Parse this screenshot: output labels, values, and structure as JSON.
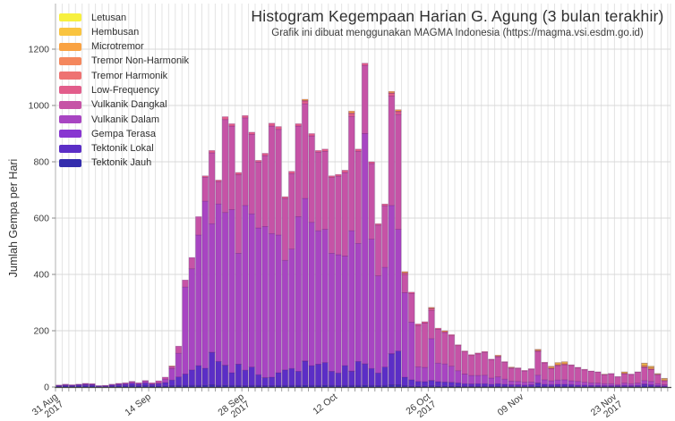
{
  "header": {
    "title": "Histogram Kegempaan Harian G. Agung (3 bulan terakhir)",
    "subtitle": "Grafik ini dibuat menggunakan MAGMA Indonesia (https://magma.vsi.esdm.go.id)"
  },
  "chart_data": {
    "type": "bar",
    "stacked": true,
    "title": "Histogram Kegempaan Harian G. Agung (3 bulan terakhir)",
    "subtitle": "Grafik ini dibuat menggunakan MAGMA Indonesia (https://magma.vsi.esdm.go.id)",
    "ylabel": "Jumlah Gempa per Hari",
    "xlabel": "",
    "x_start": "31 Aug 2017",
    "x_end": "30 Nov 2017",
    "days": 92,
    "ylim": [
      0,
      1200
    ],
    "grid": true,
    "legend_position": "upper-left",
    "yticks": [
      0,
      200,
      400,
      600,
      800,
      1000,
      1200
    ],
    "xticks": [
      {
        "day": 0,
        "lines": [
          "31 Aug",
          "2017"
        ]
      },
      {
        "day": 14,
        "lines": [
          "14 Sep"
        ]
      },
      {
        "day": 28,
        "lines": [
          "28 Sep",
          "2017"
        ]
      },
      {
        "day": 42,
        "lines": [
          "12 Oct"
        ]
      },
      {
        "day": 56,
        "lines": [
          "26 Oct",
          "2017"
        ]
      },
      {
        "day": 70,
        "lines": [
          "09 Nov"
        ]
      },
      {
        "day": 84,
        "lines": [
          "23 Nov",
          "2017"
        ]
      }
    ],
    "series": [
      {
        "key": "tektonik-jauh",
        "label": "Tektonik Jauh",
        "color": "#342DAD",
        "values": [
          3,
          4,
          3,
          4,
          4,
          4,
          2,
          2,
          3,
          4,
          4,
          5,
          4,
          5,
          4,
          4,
          4,
          5,
          6,
          6,
          6,
          6,
          7,
          8,
          6,
          7,
          6,
          6,
          5,
          6,
          6,
          5,
          5,
          6,
          6,
          6,
          6,
          7,
          6,
          6,
          7,
          6,
          5,
          6,
          6,
          6,
          7,
          6,
          5,
          6,
          8,
          8,
          5,
          4,
          4,
          4,
          5,
          4,
          4,
          4,
          4,
          3,
          3,
          3,
          3,
          3,
          3,
          3,
          2,
          2,
          2,
          2,
          4,
          3,
          3,
          3,
          3,
          3,
          2,
          2,
          2,
          2,
          2,
          2,
          2,
          2,
          2,
          2,
          4,
          3,
          2,
          2
        ]
      },
      {
        "key": "tektonik-lokal",
        "label": "Tektonik Lokal",
        "color": "#5B2EC6",
        "values": [
          2,
          3,
          3,
          4,
          5,
          4,
          2,
          2,
          4,
          5,
          6,
          8,
          6,
          9,
          6,
          8,
          12,
          20,
          30,
          40,
          55,
          70,
          60,
          115,
          85,
          70,
          45,
          75,
          55,
          65,
          38,
          28,
          30,
          45,
          55,
          60,
          50,
          85,
          70,
          75,
          80,
          50,
          45,
          70,
          50,
          85,
          75,
          60,
          45,
          65,
          110,
          120,
          30,
          22,
          16,
          15,
          18,
          15,
          14,
          13,
          11,
          9,
          8,
          9,
          9,
          7,
          9,
          7,
          6,
          6,
          5,
          6,
          10,
          7,
          6,
          7,
          7,
          6,
          5,
          5,
          4,
          4,
          3,
          3,
          3,
          4,
          3,
          4,
          6,
          5,
          3,
          2
        ]
      },
      {
        "key": "gempa-terasa",
        "label": "Gempa Terasa",
        "color": "#8836D1",
        "values": [
          0,
          0,
          0,
          0,
          0,
          0,
          0,
          0,
          0,
          0,
          0,
          0,
          0,
          0,
          0,
          0,
          0,
          0,
          0,
          0,
          0,
          0,
          0,
          1,
          0,
          1,
          0,
          0,
          0,
          0,
          0,
          1,
          0,
          0,
          0,
          0,
          0,
          1,
          0,
          0,
          0,
          0,
          0,
          0,
          1,
          0,
          1,
          0,
          0,
          0,
          1,
          0,
          0,
          0,
          0,
          0,
          1,
          0,
          0,
          0,
          0,
          0,
          0,
          0,
          0,
          0,
          0,
          0,
          0,
          0,
          0,
          0,
          1,
          0,
          0,
          0,
          0,
          0,
          0,
          0,
          0,
          0,
          0,
          0,
          0,
          0,
          0,
          0,
          1,
          0,
          0,
          0
        ]
      },
      {
        "key": "vulkanik-dalam",
        "label": "Vulkanik Dalam",
        "color": "#A845C2",
        "values": [
          1,
          2,
          1,
          1,
          2,
          2,
          1,
          1,
          2,
          2,
          3,
          4,
          3,
          6,
          1,
          3,
          12,
          40,
          84,
          309,
          359,
          464,
          593,
          456,
          559,
          542,
          579,
          394,
          585,
          544,
          521,
          536,
          510,
          489,
          389,
          424,
          549,
          577,
          509,
          474,
          473,
          419,
          420,
          389,
          498,
          419,
          817,
          459,
          345,
          354,
          526,
          432,
          300,
          204,
          52,
          51,
          148,
          66,
          64,
          57,
          43,
          34,
          30,
          29,
          30,
          22,
          24,
          18,
          13,
          12,
          10,
          10,
          27,
          16,
          13,
          15,
          16,
          13,
          13,
          10,
          9,
          8,
          7,
          7,
          4,
          8,
          7,
          8,
          12,
          12,
          7,
          4
        ]
      },
      {
        "key": "vulkanik-dangkal",
        "label": "Vulkanik Dangkal",
        "color": "#C653A6",
        "values": [
          1,
          1,
          1,
          1,
          2,
          2,
          0,
          1,
          1,
          2,
          2,
          3,
          2,
          3,
          4,
          7,
          7,
          8,
          25,
          25,
          40,
          65,
          85,
          252,
          80,
          330,
          297,
          279,
          311,
          282,
          234,
          252,
          382,
          375,
          220,
          268,
          322,
          336,
          307,
          279,
          277,
          269,
          279,
          297,
          406,
          327,
          242,
          269,
          180,
          219,
          388,
          408,
          63,
          102,
          147,
          157,
          100,
          120,
          111,
          108,
          89,
          79,
          71,
          77,
          81,
          65,
          71,
          60,
          46,
          46,
          40,
          45,
          84,
          60,
          43,
          51,
          53,
          55,
          48,
          44,
          41,
          39,
          32,
          35,
          27,
          33,
          33,
          39,
          46,
          42,
          32,
          14
        ]
      },
      {
        "key": "low-frequency",
        "label": "Low-Frequency",
        "color": "#E25D8B",
        "values": [
          0,
          0,
          0,
          0,
          0,
          0,
          0,
          0,
          0,
          0,
          0,
          0,
          0,
          0,
          0,
          0,
          0,
          0,
          0,
          0,
          0,
          0,
          5,
          8,
          5,
          10,
          8,
          8,
          8,
          8,
          6,
          8,
          10,
          10,
          6,
          8,
          8,
          10,
          8,
          6,
          8,
          6,
          6,
          8,
          10,
          8,
          8,
          6,
          5,
          6,
          10,
          10,
          6,
          5,
          5,
          5,
          6,
          4,
          4,
          4,
          3,
          3,
          3,
          3,
          3,
          2,
          3,
          2,
          2,
          2,
          2,
          2,
          3,
          2,
          2,
          2,
          2,
          2,
          2,
          2,
          1,
          1,
          1,
          1,
          1,
          1,
          1,
          1,
          2,
          2,
          1,
          1
        ]
      },
      {
        "key": "tremor-harmonik",
        "label": "Tremor Harmonik",
        "color": "#EE7372",
        "values": [
          0,
          0,
          0,
          0,
          0,
          0,
          0,
          0,
          0,
          0,
          0,
          0,
          0,
          0,
          0,
          0,
          0,
          0,
          0,
          0,
          0,
          0,
          0,
          0,
          0,
          0,
          0,
          0,
          0,
          0,
          0,
          0,
          0,
          0,
          0,
          0,
          0,
          0,
          0,
          0,
          0,
          0,
          0,
          0,
          0,
          0,
          0,
          0,
          0,
          0,
          0,
          2,
          2,
          0,
          0,
          0,
          2,
          0,
          0,
          0,
          0,
          0,
          0,
          0,
          0,
          0,
          0,
          0,
          0,
          0,
          0,
          0,
          0,
          0,
          0,
          0,
          0,
          0,
          0,
          0,
          0,
          0,
          0,
          0,
          0,
          0,
          0,
          0,
          0,
          0,
          0,
          0
        ]
      },
      {
        "key": "tremor-non-harmonik",
        "label": "Tremor Non-Harmonik",
        "color": "#F4875D",
        "values": [
          0,
          0,
          0,
          0,
          0,
          0,
          0,
          0,
          0,
          0,
          0,
          0,
          0,
          0,
          0,
          0,
          0,
          0,
          0,
          0,
          0,
          0,
          0,
          0,
          0,
          0,
          0,
          0,
          0,
          0,
          0,
          0,
          0,
          0,
          0,
          0,
          0,
          2,
          0,
          0,
          0,
          0,
          0,
          0,
          3,
          0,
          0,
          0,
          0,
          0,
          2,
          0,
          0,
          0,
          0,
          0,
          0,
          0,
          0,
          0,
          0,
          0,
          0,
          0,
          0,
          0,
          0,
          0,
          0,
          0,
          0,
          0,
          0,
          0,
          0,
          0,
          0,
          0,
          0,
          0,
          0,
          0,
          0,
          0,
          0,
          0,
          0,
          0,
          2,
          0,
          0,
          0
        ]
      },
      {
        "key": "microtremor",
        "label": "Microtremor",
        "color": "#F9A242",
        "values": [
          0,
          0,
          0,
          0,
          0,
          0,
          0,
          0,
          0,
          0,
          0,
          0,
          0,
          0,
          0,
          0,
          0,
          2,
          0,
          0,
          0,
          0,
          0,
          0,
          0,
          0,
          0,
          0,
          0,
          0,
          0,
          0,
          0,
          0,
          0,
          0,
          0,
          4,
          0,
          0,
          0,
          0,
          0,
          0,
          6,
          0,
          0,
          0,
          0,
          0,
          5,
          5,
          4,
          0,
          0,
          0,
          3,
          0,
          3,
          0,
          0,
          0,
          0,
          0,
          0,
          0,
          3,
          0,
          0,
          0,
          0,
          0,
          3,
          0,
          4,
          5,
          5,
          0,
          0,
          0,
          0,
          0,
          0,
          0,
          0,
          3,
          0,
          0,
          5,
          4,
          0,
          3
        ]
      },
      {
        "key": "hembusan",
        "label": "Hembusan",
        "color": "#F9C440",
        "values": [
          0,
          0,
          0,
          0,
          0,
          0,
          0,
          0,
          0,
          0,
          0,
          0,
          0,
          0,
          0,
          0,
          0,
          0,
          0,
          0,
          0,
          0,
          0,
          0,
          0,
          0,
          0,
          0,
          0,
          0,
          0,
          0,
          0,
          0,
          0,
          0,
          0,
          0,
          0,
          0,
          0,
          0,
          0,
          0,
          0,
          0,
          0,
          0,
          0,
          0,
          0,
          0,
          0,
          0,
          0,
          0,
          0,
          0,
          0,
          0,
          0,
          0,
          0,
          0,
          0,
          0,
          0,
          0,
          2,
          0,
          0,
          0,
          2,
          0,
          3,
          4,
          4,
          0,
          0,
          0,
          0,
          0,
          0,
          0,
          0,
          3,
          0,
          0,
          6,
          5,
          2,
          4
        ]
      },
      {
        "key": "letusan",
        "label": "Letusan",
        "color": "#F7F03E",
        "values": [
          0,
          0,
          0,
          0,
          0,
          0,
          0,
          0,
          0,
          0,
          0,
          0,
          0,
          0,
          0,
          0,
          0,
          0,
          0,
          0,
          0,
          0,
          0,
          0,
          0,
          0,
          0,
          0,
          0,
          0,
          0,
          0,
          0,
          0,
          0,
          0,
          0,
          0,
          0,
          0,
          0,
          0,
          0,
          0,
          0,
          0,
          0,
          0,
          0,
          0,
          0,
          0,
          0,
          0,
          0,
          0,
          0,
          0,
          0,
          0,
          0,
          0,
          0,
          0,
          0,
          0,
          0,
          0,
          0,
          0,
          0,
          0,
          0,
          0,
          0,
          0,
          0,
          0,
          0,
          0,
          0,
          0,
          1,
          0,
          0,
          0,
          0,
          0,
          1,
          1,
          1,
          1
        ]
      }
    ]
  },
  "style": {
    "grid_vertical_color": "#e4e4e4",
    "grid_horizontal_color": "#d8d8d8",
    "axis_color": "#4a4a4a",
    "spine_color": "#b0b0b0",
    "tick_color": "#8a8a8a",
    "tick_label_color": "#3b3b3b",
    "bar_stroke": "rgba(80,15,105,0.32)"
  }
}
